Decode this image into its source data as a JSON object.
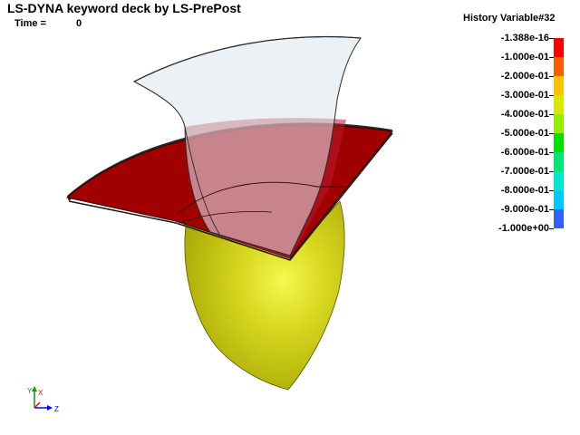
{
  "header": {
    "title": "LS-DYNA keyword deck by LS-PrePost",
    "time_label": "Time =",
    "time_value": "0"
  },
  "legend": {
    "title": "History Variable#32",
    "labels": [
      "-1.388e-16",
      "-1.000e-01",
      "-2.000e-01",
      "-3.000e-01",
      "-4.000e-01",
      "-5.000e-01",
      "-6.000e-01",
      "-7.000e-01",
      "-8.000e-01",
      "-9.000e-01",
      "-1.000e+00"
    ],
    "colors": [
      "#ff0000",
      "#ff5a00",
      "#ffc000",
      "#d8e800",
      "#90f000",
      "#00e000",
      "#00e870",
      "#00e8d0",
      "#00c8ff",
      "#3060ff",
      "#0000ff"
    ]
  },
  "scene": {
    "parts": [
      {
        "name": "sheet",
        "color": "#a00000"
      },
      {
        "name": "die",
        "color": "#dde5ec"
      },
      {
        "name": "punch",
        "color": "#c8c800"
      }
    ]
  },
  "triad": {
    "x_label": "X",
    "y_label": "Y",
    "z_label": "Z"
  }
}
